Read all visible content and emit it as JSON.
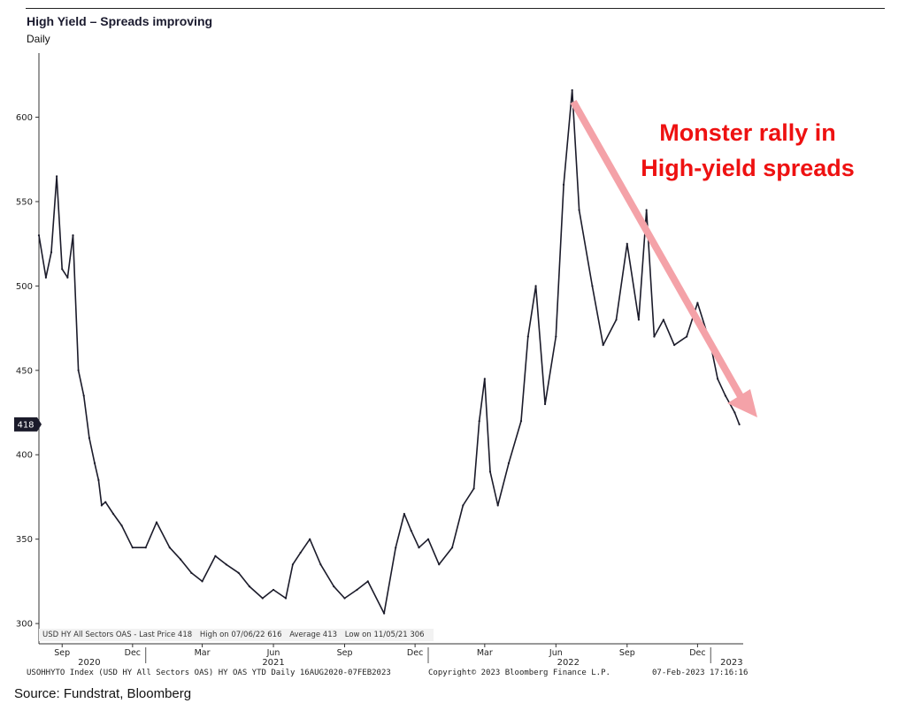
{
  "header": {
    "title": "High Yield – Spreads improving",
    "subtitle": "Daily"
  },
  "annotation": {
    "line1": "Monster rally in",
    "line2": "High-yield spreads"
  },
  "legend": {
    "last_price": "USD HY All Sectors OAS - Last Price 418",
    "high": "High on 07/06/22 616",
    "average": "Average 413",
    "low": "Low on 11/05/21 306"
  },
  "footer": {
    "left": "USOHHYTO Index (USD HY All Sectors OAS) HY OAS YTD  Daily 16AUG2020-07FEB2023",
    "middle": "Copyright© 2023 Bloomberg Finance L.P.",
    "right": "07-Feb-2023 17:16:16"
  },
  "source": "Source: Fundstrat, Bloomberg",
  "chart_data": {
    "type": "line",
    "title": "High Yield – Spreads improving",
    "subtitle": "Daily",
    "xlabel": "",
    "ylabel": "",
    "ylim": [
      288,
      638
    ],
    "yticks": [
      300,
      350,
      400,
      450,
      500,
      550,
      600
    ],
    "grid": false,
    "last_value_label": "418",
    "x_month_ticks": [
      {
        "label": "Sep",
        "date": "2020-09"
      },
      {
        "label": "Dec",
        "date": "2020-12"
      },
      {
        "label": "Mar",
        "date": "2021-03"
      },
      {
        "label": "Jun",
        "date": "2021-06"
      },
      {
        "label": "Sep",
        "date": "2021-09"
      },
      {
        "label": "Dec",
        "date": "2021-12"
      },
      {
        "label": "Mar",
        "date": "2022-03"
      },
      {
        "label": "Jun",
        "date": "2022-06"
      },
      {
        "label": "Sep",
        "date": "2022-09"
      },
      {
        "label": "Dec",
        "date": "2022-12"
      }
    ],
    "x_year_labels": [
      "2020",
      "2021",
      "2022",
      "2023"
    ],
    "series": [
      {
        "name": "USD HY All Sectors OAS",
        "x": [
          "2020-08-16",
          "2020-08-25",
          "2020-09-01",
          "2020-09-08",
          "2020-09-15",
          "2020-09-22",
          "2020-09-29",
          "2020-10-06",
          "2020-10-13",
          "2020-10-20",
          "2020-10-27",
          "2020-11-01",
          "2020-11-05",
          "2020-11-10",
          "2020-11-20",
          "2020-12-01",
          "2020-12-15",
          "2021-01-01",
          "2021-01-15",
          "2021-02-01",
          "2021-02-15",
          "2021-03-01",
          "2021-03-15",
          "2021-04-01",
          "2021-04-15",
          "2021-05-01",
          "2021-05-15",
          "2021-06-01",
          "2021-06-15",
          "2021-07-01",
          "2021-07-10",
          "2021-07-20",
          "2021-08-01",
          "2021-08-15",
          "2021-09-01",
          "2021-09-15",
          "2021-10-01",
          "2021-10-15",
          "2021-11-05",
          "2021-11-20",
          "2021-12-01",
          "2021-12-10",
          "2021-12-20",
          "2022-01-01",
          "2022-01-15",
          "2022-02-01",
          "2022-02-15",
          "2022-03-01",
          "2022-03-08",
          "2022-03-15",
          "2022-03-22",
          "2022-04-01",
          "2022-04-15",
          "2022-05-01",
          "2022-05-10",
          "2022-05-20",
          "2022-06-01",
          "2022-06-15",
          "2022-06-25",
          "2022-07-06",
          "2022-07-15",
          "2022-08-01",
          "2022-08-15",
          "2022-09-01",
          "2022-09-15",
          "2022-09-30",
          "2022-10-10",
          "2022-10-20",
          "2022-11-01",
          "2022-11-15",
          "2022-12-01",
          "2022-12-15",
          "2023-01-01",
          "2023-01-10",
          "2023-01-20",
          "2023-02-01",
          "2023-02-07"
        ],
        "values": [
          530,
          505,
          520,
          565,
          510,
          505,
          530,
          450,
          435,
          410,
          395,
          385,
          370,
          372,
          365,
          358,
          345,
          345,
          360,
          345,
          338,
          330,
          325,
          340,
          335,
          330,
          322,
          315,
          320,
          315,
          335,
          342,
          350,
          335,
          322,
          315,
          320,
          325,
          306,
          345,
          365,
          355,
          345,
          350,
          335,
          345,
          370,
          380,
          420,
          445,
          390,
          370,
          395,
          420,
          470,
          500,
          430,
          470,
          560,
          616,
          545,
          500,
          465,
          480,
          525,
          480,
          545,
          470,
          480,
          465,
          470,
          490,
          465,
          445,
          435,
          425,
          418
        ]
      }
    ]
  }
}
